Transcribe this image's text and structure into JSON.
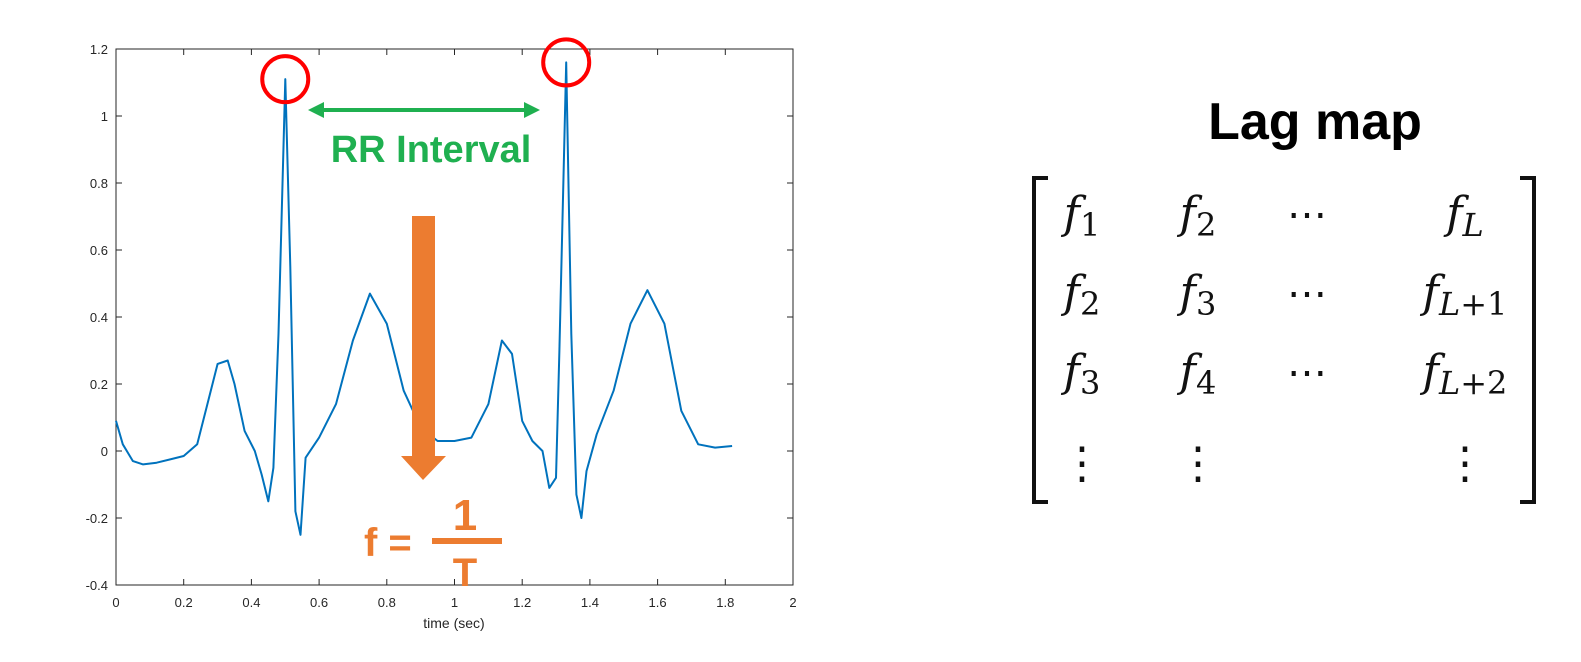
{
  "colors": {
    "signal": "#0072bd",
    "peak_circle": "#ff0000",
    "rr": "#1fb050",
    "freq": "#ec7c30",
    "transform_arrow": "#00996b"
  },
  "plot": {
    "x_ticks": [
      "0",
      "0.2",
      "0.4",
      "0.6",
      "0.8",
      "1",
      "1.2",
      "1.4",
      "1.6",
      "1.8",
      "2"
    ],
    "y_ticks": [
      "1.2",
      "1",
      "0.8",
      "0.6",
      "0.4",
      "0.2",
      "0",
      "-0.2",
      "-0.4"
    ],
    "xlabel": "time (sec)",
    "rr_label": "RR Interval",
    "formula": {
      "lhs": "f =",
      "numerator": "1",
      "denominator": "T"
    }
  },
  "chart_data": {
    "type": "line",
    "xlabel": "time (sec)",
    "ylabel": "",
    "xlim": [
      0,
      2
    ],
    "ylim": [
      -0.4,
      1.2
    ],
    "series": [
      {
        "x": [
          0.0,
          0.02,
          0.05,
          0.08,
          0.12,
          0.16,
          0.2,
          0.24,
          0.27,
          0.3,
          0.33,
          0.35,
          0.38,
          0.41,
          0.43,
          0.45,
          0.465,
          0.48,
          0.5,
          0.515,
          0.53,
          0.545,
          0.56,
          0.6,
          0.65,
          0.7,
          0.75,
          0.8,
          0.85,
          0.9,
          0.95,
          1.0,
          1.05,
          1.1,
          1.14,
          1.17,
          1.2,
          1.23,
          1.26,
          1.28,
          1.3,
          1.31,
          1.33,
          1.345,
          1.36,
          1.375,
          1.39,
          1.42,
          1.47,
          1.52,
          1.57,
          1.62,
          1.67,
          1.72,
          1.77,
          1.82
        ],
        "y": [
          0.09,
          0.02,
          -0.03,
          -0.04,
          -0.035,
          -0.025,
          -0.015,
          0.02,
          0.14,
          0.26,
          0.27,
          0.2,
          0.06,
          0.0,
          -0.07,
          -0.15,
          -0.05,
          0.35,
          1.11,
          0.55,
          -0.18,
          -0.25,
          -0.02,
          0.04,
          0.14,
          0.33,
          0.47,
          0.38,
          0.18,
          0.07,
          0.03,
          0.03,
          0.04,
          0.14,
          0.33,
          0.29,
          0.09,
          0.03,
          0.0,
          -0.11,
          -0.08,
          0.3,
          1.16,
          0.35,
          -0.13,
          -0.2,
          -0.06,
          0.05,
          0.18,
          0.38,
          0.48,
          0.38,
          0.12,
          0.02,
          0.01,
          0.015
        ]
      }
    ],
    "peaks": [
      {
        "x": 0.5,
        "y": 1.11
      },
      {
        "x": 1.33,
        "y": 1.16
      }
    ]
  },
  "lag_map": {
    "title": "Lag map",
    "rows": [
      [
        [
          "f",
          "1"
        ],
        [
          "f",
          "2"
        ],
        [
          "⋯",
          ""
        ],
        [
          "f",
          "L"
        ]
      ],
      [
        [
          "f",
          "2"
        ],
        [
          "f",
          "3"
        ],
        [
          "⋯",
          ""
        ],
        [
          "f",
          "L+1"
        ]
      ],
      [
        [
          "f",
          "3"
        ],
        [
          "f",
          "4"
        ],
        [
          "⋯",
          ""
        ],
        [
          "f",
          "L+2"
        ]
      ],
      [
        [
          "⋮",
          ""
        ],
        [
          "⋮",
          ""
        ],
        [
          "",
          ""
        ],
        [
          "⋮",
          ""
        ]
      ]
    ]
  }
}
